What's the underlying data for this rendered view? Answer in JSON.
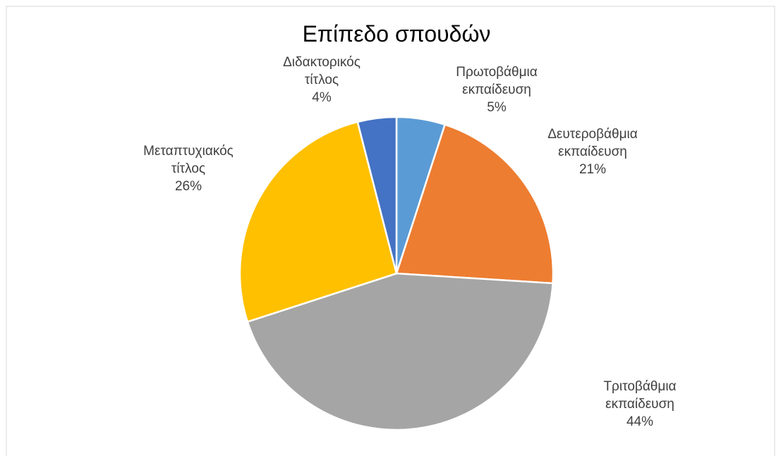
{
  "chart_data": {
    "type": "pie",
    "title": "Επίπεδο σπουδών",
    "categories": [
      "Πρωτοβάθμια εκπαίδευση",
      "Δευτεροβάθμια εκπαίδευση",
      "Τριτοβάθμια εκπαίδευση",
      "Μεταπτυχιακός τίτλος",
      "Διδακτορικός τίτλος"
    ],
    "values": [
      5,
      21,
      44,
      26,
      4
    ],
    "value_labels": [
      "5%",
      "21%",
      "44%",
      "26%",
      "4%"
    ],
    "colors": [
      "#5b9bd5",
      "#ed7d31",
      "#a5a5a5",
      "#ffc000",
      "#4472c4"
    ]
  }
}
